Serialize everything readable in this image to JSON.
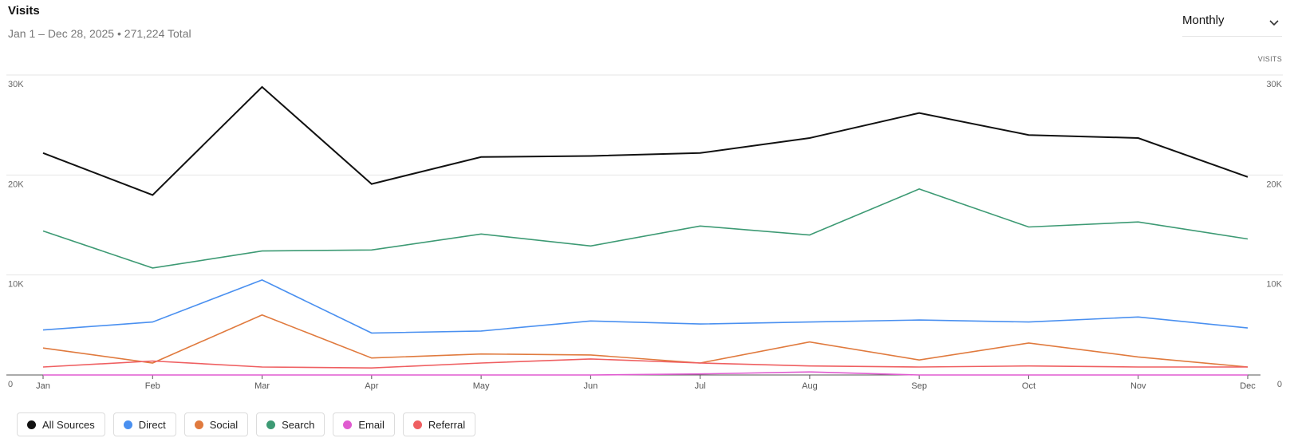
{
  "header": {
    "title": "Visits",
    "subtitle": "Jan 1 – Dec 28, 2025 • 271,224 Total"
  },
  "period_select": {
    "value": "Monthly",
    "icon": "chevron-down-icon"
  },
  "axis_label_right": "VISITS",
  "chart_data": {
    "type": "line",
    "categories": [
      "Jan",
      "Feb",
      "Mar",
      "Apr",
      "May",
      "Jun",
      "Jul",
      "Aug",
      "Sep",
      "Oct",
      "Nov",
      "Dec"
    ],
    "ylim": [
      0,
      30000
    ],
    "yticks": [
      0,
      10000,
      20000,
      30000
    ],
    "ytick_labels": [
      "0",
      "10K",
      "20K",
      "30K"
    ],
    "ylabel": "VISITS",
    "grid": true,
    "legend_position": "bottom-left",
    "series": [
      {
        "name": "All Sources",
        "color": "#111111",
        "values": [
          22200,
          18000,
          28800,
          19100,
          21800,
          21900,
          22200,
          23700,
          26200,
          24000,
          23700,
          19800
        ]
      },
      {
        "name": "Direct",
        "color": "#4a90f0",
        "values": [
          4500,
          5300,
          9500,
          4200,
          4400,
          5400,
          5100,
          5300,
          5500,
          5300,
          5800,
          4700
        ]
      },
      {
        "name": "Social",
        "color": "#e07a3e",
        "values": [
          2700,
          1200,
          6000,
          1700,
          2100,
          2000,
          1200,
          3300,
          1500,
          3200,
          1800,
          800
        ]
      },
      {
        "name": "Search",
        "color": "#3d9a74",
        "values": [
          14400,
          10700,
          12400,
          12500,
          14100,
          12900,
          14900,
          14000,
          18600,
          14800,
          15300,
          13600
        ]
      },
      {
        "name": "Email",
        "color": "#e05bd0",
        "values": [
          0,
          0,
          0,
          0,
          0,
          0,
          100,
          300,
          0,
          0,
          0,
          0
        ]
      },
      {
        "name": "Referral",
        "color": "#ef5f61",
        "values": [
          800,
          1400,
          800,
          700,
          1200,
          1600,
          1200,
          900,
          800,
          900,
          800,
          800
        ]
      }
    ]
  },
  "legend": {
    "items": [
      {
        "label": "All Sources",
        "color": "#111111"
      },
      {
        "label": "Direct",
        "color": "#4a90f0"
      },
      {
        "label": "Social",
        "color": "#e07a3e"
      },
      {
        "label": "Search",
        "color": "#3d9a74"
      },
      {
        "label": "Email",
        "color": "#e05bd0"
      },
      {
        "label": "Referral",
        "color": "#ef5f61"
      }
    ]
  }
}
